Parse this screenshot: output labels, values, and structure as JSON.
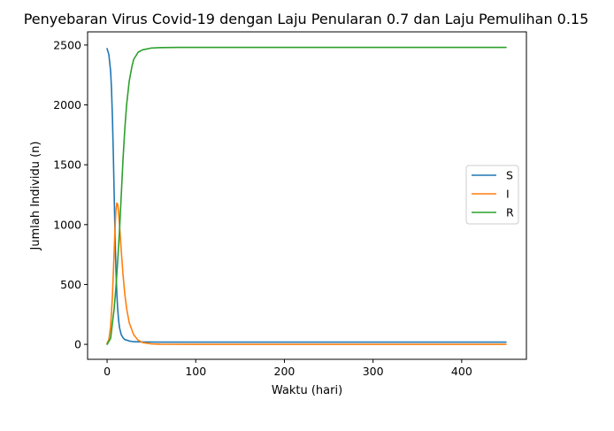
{
  "chart_data": {
    "type": "line",
    "title": "Penyebaran Virus Covid-19 dengan Laju Penularan 0.7 dan Laju Pemulihan 0.15",
    "xlabel": "Waktu (hari)",
    "ylabel": "Jumlah Individu (n)",
    "xlim": [
      -22,
      473
    ],
    "ylim": [
      -125,
      2610
    ],
    "xticks": [
      0,
      100,
      200,
      300,
      400
    ],
    "yticks": [
      0,
      500,
      1000,
      1500,
      2000,
      2500
    ],
    "grid": false,
    "legend_position": "center-right",
    "series": [
      {
        "name": "S",
        "color": "#1f77b4",
        "x": [
          0,
          2,
          4,
          5,
          6,
          7,
          8,
          9,
          10,
          11,
          12,
          13,
          14,
          16,
          18,
          20,
          25,
          30,
          40,
          60,
          100,
          200,
          300,
          400,
          450
        ],
        "y": [
          2470,
          2420,
          2280,
          2130,
          1900,
          1600,
          1250,
          900,
          620,
          420,
          290,
          200,
          140,
          80,
          55,
          40,
          28,
          22,
          20,
          19,
          19,
          19,
          19,
          19,
          19
        ]
      },
      {
        "name": "I",
        "color": "#ff7f0e",
        "x": [
          0,
          2,
          4,
          6,
          8,
          9,
          10,
          11,
          12,
          13,
          14,
          16,
          18,
          20,
          22,
          25,
          30,
          35,
          40,
          50,
          60,
          100,
          200,
          300,
          400,
          450
        ],
        "y": [
          10,
          40,
          150,
          400,
          780,
          980,
          1120,
          1180,
          1170,
          1100,
          1000,
          780,
          580,
          420,
          300,
          180,
          80,
          35,
          15,
          4,
          1,
          0,
          0,
          0,
          0,
          0
        ]
      },
      {
        "name": "R",
        "color": "#2ca02c",
        "x": [
          0,
          4,
          8,
          10,
          12,
          14,
          16,
          18,
          20,
          22,
          25,
          28,
          30,
          35,
          40,
          50,
          60,
          80,
          100,
          200,
          300,
          400,
          450
        ],
        "y": [
          0,
          50,
          300,
          480,
          700,
          950,
          1250,
          1550,
          1800,
          2000,
          2200,
          2320,
          2380,
          2440,
          2460,
          2475,
          2478,
          2480,
          2480,
          2480,
          2480,
          2480,
          2480
        ]
      }
    ]
  }
}
